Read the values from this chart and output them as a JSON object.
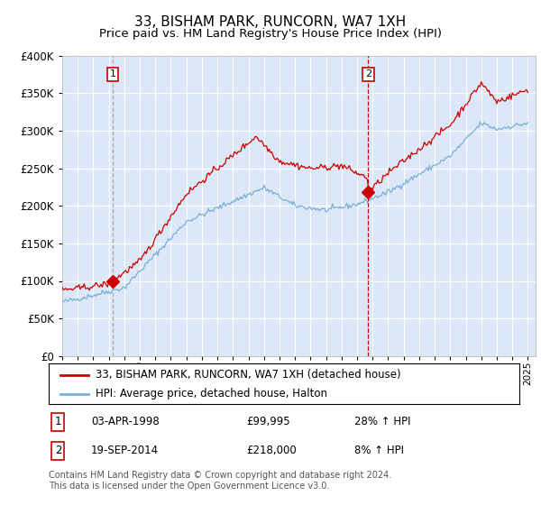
{
  "title": "33, BISHAM PARK, RUNCORN, WA7 1XH",
  "subtitle": "Price paid vs. HM Land Registry's House Price Index (HPI)",
  "title_fontsize": 11,
  "subtitle_fontsize": 9.5,
  "background_color": "#dce8f8",
  "plot_bg_color": "#dce8f8",
  "legend_label_red": "33, BISHAM PARK, RUNCORN, WA7 1XH (detached house)",
  "legend_label_blue": "HPI: Average price, detached house, Halton",
  "footer": "Contains HM Land Registry data © Crown copyright and database right 2024.\nThis data is licensed under the Open Government Licence v3.0.",
  "sale1_date": "03-APR-1998",
  "sale1_price": "£99,995",
  "sale1_hpi": "28% ↑ HPI",
  "sale1_year": 1998.25,
  "sale1_value": 99995,
  "sale2_date": "19-SEP-2014",
  "sale2_price": "£218,000",
  "sale2_hpi": "8% ↑ HPI",
  "sale2_year": 2014.72,
  "sale2_value": 218000,
  "xmin": 1995.0,
  "xmax": 2025.5,
  "ymin": 0,
  "ymax": 400000,
  "red_color": "#cc0000",
  "blue_color": "#7ab0d4",
  "vline_color": "#cc0000",
  "marker_color": "#cc0000",
  "grid_color": "#ffffff"
}
